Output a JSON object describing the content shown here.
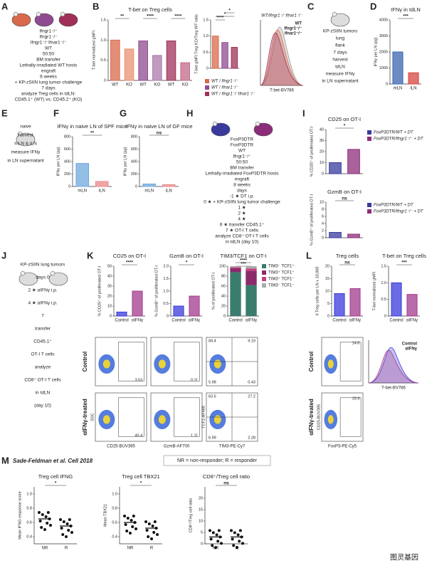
{
  "panels": [
    {
      "letter": "A",
      "texts": [
        "Ifngr1⁻/⁻",
        "Ifngr1⁻/⁻",
        "Ifngr1⁻/⁻Ifnar1⁻/⁻",
        "WT",
        "50:50",
        "BM transfer",
        "Lethally-irradiated WT hosts",
        "engraft",
        "6 weeks",
        "+ KP-zSIIN lung tumor challenge",
        "7 days",
        "analyze Treg cells in tdLN:",
        "CD45.1⁺ (WT) vs. CD45.2⁺ (KO)"
      ]
    },
    {
      "letter": "B",
      "charts": [
        {
          "type": "bar",
          "title": "T-bet on Treg cells",
          "ylabel": "T-bet normalized gMFI",
          "categories": [
            "WT",
            "KO",
            "WT",
            "KO",
            "WT",
            "KO"
          ],
          "values": [
            1.0,
            0.78,
            0.98,
            0.62,
            0.98,
            0.44
          ],
          "colors": [
            "#d9694a",
            "#e89272",
            "#8e4b8f",
            "#a97aab",
            "#a0305a",
            "#c26a8a"
          ],
          "ylim": [
            0,
            1.5
          ],
          "yticks": [
            0,
            0.5,
            {
              "value": 1,
              "label": "1.0"
            },
            1.5
          ],
          "sig": [
            "**",
            "****",
            "****"
          ]
        },
        {
          "type": "bar",
          "ylabel": "T-bet gMFI Treg KO/Treg WT ratio",
          "categories": [
            null,
            null,
            null
          ],
          "values": [
            1.0,
            0.8,
            0.65
          ],
          "colors": [
            "#d9694a",
            "#8e4b8f",
            "#a0305a"
          ],
          "ylim": [
            0,
            1.5
          ],
          "yticks": [
            0,
            0.5,
            {
              "value": 1,
              "label": "1.0"
            },
            1.5
          ],
          "sig": [
            "****",
            "*",
            "*"
          ],
          "legend": [
            "WT / Ifngr1⁻/⁻",
            "WT / Ifnar1⁻/⁻",
            "WT / Ifngr1⁻/⁻Ifnar1⁻/⁻"
          ]
        },
        {
          "type": "hist",
          "title": "WT/Ifngr1⁻/⁻Ifnar1⁻/⁻",
          "legend": [
            "WT",
            "Ifngr1⁻/⁻",
            "Ifnar1⁻/⁻"
          ],
          "colors": [
            "#999999",
            "#d9694a",
            "#a0305a"
          ],
          "xlabel": "T-bet-BV786"
        }
      ]
    },
    {
      "letter": "C",
      "texts": [
        "KP-zSIIN tumors",
        "lung",
        "flank",
        "7 days",
        "harvest",
        "tdLN",
        "measure IFNγ",
        "in LN supernatant"
      ]
    },
    {
      "letter": "D",
      "charts": [
        {
          "type": "bar",
          "title": "IFNγ in tdLN",
          "ylabel": "IFNγ per LN (pg)",
          "categories": [
            "mLN",
            "iLN"
          ],
          "values": [
            2000,
            700
          ],
          "colors": [
            "#3b64b0",
            "#d6453d"
          ],
          "ylim": [
            0,
            4000
          ],
          "yticks": [
            0,
            1000,
            2000,
            3000,
            4000
          ],
          "sig": [
            "***"
          ]
        }
      ]
    },
    {
      "letter": "E",
      "texts": [
        "naive",
        "harvest",
        "mLN & iLN",
        "measure IFNγ",
        "in LN supernatant"
      ]
    },
    {
      "letter": "F",
      "charts": [
        {
          "type": "bar",
          "title": "IFNγ in naive LN of SPF mice",
          "ylabel": "IFNγ per LN (pg)",
          "categories": [
            "mLN",
            "iLN"
          ],
          "values": [
            370,
            80
          ],
          "colors": [
            "#6fa8dc",
            "#e88a8a"
          ],
          "ylim": [
            0,
            800
          ],
          "yticks": [
            0,
            200,
            400,
            600,
            800
          ],
          "sig": [
            "**"
          ]
        }
      ]
    },
    {
      "letter": "G",
      "charts": [
        {
          "type": "bar",
          "title": "IFNγ in naive LN of GF mice",
          "ylabel": "IFNγ per LN (pg)",
          "categories": [
            "mLN",
            "iLN"
          ],
          "values": [
            40,
            30
          ],
          "colors": [
            "#6fa8dc",
            "#e88a8a"
          ],
          "ylim": [
            0,
            800
          ],
          "yticks": [
            0,
            200,
            400,
            600,
            800
          ],
          "sig": [
            "ns"
          ]
        }
      ]
    },
    {
      "letter": "H",
      "texts": [
        "FoxP3DTR",
        "FoxP3DTR",
        "WT",
        "Ifngr1⁻/⁻",
        "50:50",
        "BM transfer",
        "Lethally-irradiated FoxP3DTR hosts",
        "engraft",
        "8 weeks",
        "days",
        "-1 ★ DT i.p.",
        "0 ★ + KP-zSIIN lung tumor challenge",
        "1 ★",
        "2 ★",
        "4 ★",
        "6 ★ transfer CD45.1⁺",
        "7 ★ OT-I T cells",
        "analyze CD8⁺ OT-I T cells",
        "in tdLN (day 10)"
      ]
    },
    {
      "letter": "I",
      "charts": [
        {
          "type": "bar",
          "title": "CD25 on OT-I",
          "ylabel": "% CD25⁺ of proliferated OT-I",
          "categories": [
            null,
            null
          ],
          "values": [
            10,
            22
          ],
          "colors": [
            "#3a3a9e",
            "#8c2d7a"
          ],
          "ylim": [
            0,
            40
          ],
          "yticks": [
            0,
            10,
            20,
            30,
            40
          ],
          "sig": [
            "*"
          ],
          "legend": [
            "FoxP3DTR/WT + DT",
            "FoxP3DTR/Ifngr1⁻/⁻ + DT"
          ]
        },
        {
          "type": "bar",
          "title": "GzmB on OT-I",
          "ylabel": "% GzmB⁺ of proliferated OT-I",
          "categories": [
            null,
            null
          ],
          "values": [
            1.5,
            1.0
          ],
          "colors": [
            "#3a3a9e",
            "#8c2d7a"
          ],
          "ylim": [
            0,
            10
          ],
          "yticks": [
            0,
            2,
            4,
            6,
            8,
            10
          ],
          "sig": [
            "ns"
          ],
          "legend": [
            "FoxP3DTR/WT + DT",
            "FoxP3DTR/Ifngr1⁻/⁻ + DT"
          ]
        }
      ]
    },
    {
      "letter": "J",
      "texts": [
        "KP-zSIIN lung tumors",
        "days 0",
        "2 ★ αIFNγ i.p.",
        "4 ★ αIFNγ i.p.",
        "7",
        "transfer",
        "CD45.1⁺",
        "OT-I T cells",
        "analyze",
        "CD8⁺ OT-I T cells",
        "in tdLN",
        "(day 10)"
      ]
    },
    {
      "letter": "K",
      "charts": [
        {
          "type": "bar",
          "title": "CD25 on OT-I",
          "ylabel": "% CD25⁺ of proliferated OT-I",
          "categories": [
            "Control",
            "αIFNγ"
          ],
          "values": [
            4,
            25
          ],
          "colors": [
            "#3a3adb",
            "#a33a8c"
          ],
          "ylim": [
            0,
            50
          ],
          "yticks": [
            0,
            10,
            20,
            30,
            40,
            50
          ],
          "sig": [
            "****"
          ]
        },
        {
          "type": "bar",
          "title": "GzmB on OT-I",
          "ylabel": "% GzmB⁺ of proliferated OT-I",
          "categories": [
            "Control",
            "αIFNγ"
          ],
          "values": [
            0.4,
            0.8
          ],
          "colors": [
            "#3a3adb",
            "#a33a8c"
          ],
          "ylim": [
            0,
            2
          ],
          "yticks": [
            0,
            0.5,
            {
              "value": 1,
              "label": "1.0"
            },
            1.5,
            {
              "value": 2,
              "label": "2.0"
            }
          ],
          "sig": [
            "*"
          ]
        },
        {
          "type": "stacked",
          "title": "TIM3/TCF1 on OT-I",
          "ylabel": "% of proliferated OT-I",
          "categories": [
            "Control",
            "αIFNγ"
          ],
          "series": [
            {
              "name": "TIM3⁻ TCF1⁺",
              "color": "#3a7d6e",
              "values": [
                88,
                62
              ]
            },
            {
              "name": "TIM3⁺ TCF1⁺",
              "color": "#8b2a6b",
              "values": [
                8,
                28
              ]
            },
            {
              "name": "TIM3⁺ TCF1⁻",
              "color": "#c2417e",
              "values": [
                2,
                5
              ]
            },
            {
              "name": "TIM3⁻ TCF1⁻",
              "color": "#aaaaaa",
              "values": [
                2,
                5
              ]
            }
          ],
          "ylim": [
            0,
            100
          ],
          "yticks": [
            0,
            20,
            40,
            60,
            80,
            100
          ],
          "sig": [
            "***",
            "****"
          ]
        }
      ],
      "flow": {
        "rows": [
          "Control",
          "αIFNγ-treated"
        ],
        "gates": [
          [
            "3.53",
            "0.11",
            "84.4",
            "9.19",
            "5.98",
            "0.43"
          ],
          [
            "45.4",
            "1.11",
            "63.5",
            "27.2",
            "6.99",
            "2.28"
          ]
        ],
        "xlabels": [
          "CD25-BUV395",
          "GzmB-AF700",
          "TIM3-PE-Cy7"
        ],
        "ylabels": [
          "SSC",
          "TCF1-AF488"
        ]
      }
    },
    {
      "letter": "L",
      "charts": [
        {
          "type": "bar",
          "title": "Treg cells",
          "ylabel": "# Treg cells per LN x 10,000",
          "categories": [
            "Control",
            "αIFNγ"
          ],
          "values": [
            9,
            11
          ],
          "colors": [
            "#3a3adb",
            "#a33a8c"
          ],
          "ylim": [
            0,
            20
          ],
          "yticks": [
            0,
            5,
            10,
            15,
            20
          ],
          "sig": [
            "ns"
          ]
        },
        {
          "type": "bar",
          "title": "T-bet on Treg cells",
          "ylabel": "T-bet normalized gMFI",
          "categories": [
            "Control",
            "αIFNγ"
          ],
          "values": [
            1.0,
            0.65
          ],
          "colors": [
            "#3a3adb",
            "#a33a8c"
          ],
          "ylim": [
            0,
            1.5
          ],
          "yticks": [
            0,
            0.5,
            {
              "value": 1,
              "label": "1.0"
            },
            1.5
          ],
          "sig": [
            "***"
          ]
        },
        {
          "type": "hist",
          "legend": [
            "Control",
            "αIFNγ"
          ],
          "colors": [
            "#3a3adb",
            "#a33a8c"
          ],
          "xlabel": "T-bet-BV786"
        }
      ],
      "flow": {
        "rows": [
          "Control",
          "αIFNγ-treated"
        ],
        "gates": [
          [
            "14.6"
          ],
          [
            "15.9"
          ]
        ],
        "xlabels": [
          "FoxP3-PE-Cy5"
        ],
        "ylabels": [
          "CD25-BUV395"
        ]
      }
    },
    {
      "letter": "M",
      "header": "Sade-Feldman et al. Cell 2018",
      "note": "NR = non-responder; R = responder",
      "charts": [
        {
          "type": "median",
          "title": "Treg cell IFNG",
          "ylabel": "Mean IFNG response score",
          "categories": [
            "NR",
            "R"
          ],
          "values": [
            0.65,
            0.55
          ],
          "color": "#111111",
          "ylim": [
            0.3,
            1.1
          ],
          "yticks": [
            0.4,
            0.6,
            0.8,
            {
              "value": 1,
              "label": "1.0"
            }
          ],
          "sig": [
            "*"
          ]
        },
        {
          "type": "median",
          "title": "Treg cell TBX21",
          "ylabel": "Mean TBX21",
          "categories": [
            "NR",
            "R"
          ],
          "values": [
            0.6,
            0.52
          ],
          "color": "#111111",
          "ylim": [
            0.3,
            1.1
          ],
          "yticks": [
            0.4,
            0.6,
            0.8,
            {
              "value": 1,
              "label": "1.0"
            }
          ],
          "sig": [
            "*"
          ]
        },
        {
          "type": "median",
          "title": "CD8⁺/Treg cell ratio",
          "ylabel": "CD8⁺/Treg cell ratio",
          "categories": [
            "NR",
            "R"
          ],
          "values": [
            3,
            3
          ],
          "color": "#111111",
          "ylim": [
            0,
            25
          ],
          "yticks": [
            0,
            5,
            10,
            15,
            20
          ],
          "sig": [
            "ns"
          ]
        }
      ]
    }
  ],
  "watermark": "图灵基因"
}
